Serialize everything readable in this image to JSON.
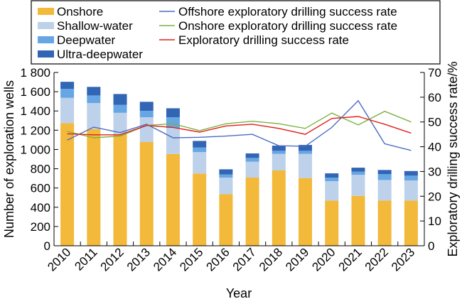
{
  "chart_data": {
    "type": "bar",
    "subtype": "stacked-bar-with-lines-dual-axis",
    "title": "",
    "xlabel": "Year",
    "ylabel": "Number of exploration wells",
    "y2label": "Exploratory drilling success rate/%",
    "categories": [
      "2010",
      "2011",
      "2012",
      "2013",
      "2014",
      "2015",
      "2016",
      "2017",
      "2018",
      "2019",
      "2020",
      "2021",
      "2022",
      "2023"
    ],
    "ylim": [
      0,
      1800
    ],
    "yticks": [
      0,
      200,
      400,
      600,
      800,
      1000,
      1200,
      1400,
      1600,
      1800
    ],
    "ytick_labels": [
      "0",
      "200",
      "400",
      "600",
      "800",
      "1 000",
      "1 200",
      "1 400",
      "1 600",
      "1 800"
    ],
    "y2lim": [
      0,
      70
    ],
    "y2ticks": [
      0,
      10,
      20,
      30,
      40,
      50,
      60,
      70
    ],
    "y2tick_labels": [
      "0",
      "10",
      "20",
      "30",
      "40",
      "50",
      "60",
      "70"
    ],
    "grid": false,
    "legend_position": "top",
    "bar_series": [
      {
        "name": "Onshore",
        "color": "#F2B93B",
        "values": [
          1274,
          1212,
          1160,
          1077,
          953,
          750,
          536,
          708,
          782,
          703,
          470,
          518,
          470,
          470
        ]
      },
      {
        "name": "Shallow-water",
        "color": "#BDD1EA",
        "values": [
          262,
          270,
          221,
          258,
          271,
          223,
          172,
          165,
          172,
          251,
          201,
          219,
          213,
          208
        ]
      },
      {
        "name": "Deepwater",
        "color": "#66A6E4",
        "values": [
          94,
          79,
          82,
          66,
          111,
          47,
          32,
          39,
          32,
          32,
          37,
          32,
          62,
          50
        ]
      },
      {
        "name": "Ultra-deepwater",
        "color": "#3265B4",
        "values": [
          73,
          89,
          113,
          94,
          93,
          69,
          54,
          47,
          54,
          61,
          44,
          42,
          42,
          48
        ]
      }
    ],
    "line_series": [
      {
        "name": "Offshore exploratory drilling success rate",
        "color": "#4A6CC4",
        "axis": "right",
        "values": [
          42.7,
          47.9,
          45.7,
          49.1,
          43.6,
          43.8,
          44.3,
          45.0,
          40.4,
          40.2,
          47.8,
          58.6,
          41.2,
          38.5
        ]
      },
      {
        "name": "Onshore exploratory drilling success rate",
        "color": "#7CB342",
        "axis": "right",
        "values": [
          46.2,
          43.6,
          44.3,
          48.6,
          49.3,
          46.5,
          49.3,
          50.3,
          49.3,
          47.4,
          53.6,
          48.8,
          54.3,
          50.0
        ]
      },
      {
        "name": "Exploratory drilling success rate",
        "color": "#E0201B",
        "axis": "right",
        "values": [
          45.2,
          44.8,
          44.8,
          48.6,
          47.8,
          45.9,
          48.4,
          49.1,
          47.4,
          45.0,
          51.4,
          52.2,
          49.1,
          45.5
        ]
      }
    ]
  }
}
